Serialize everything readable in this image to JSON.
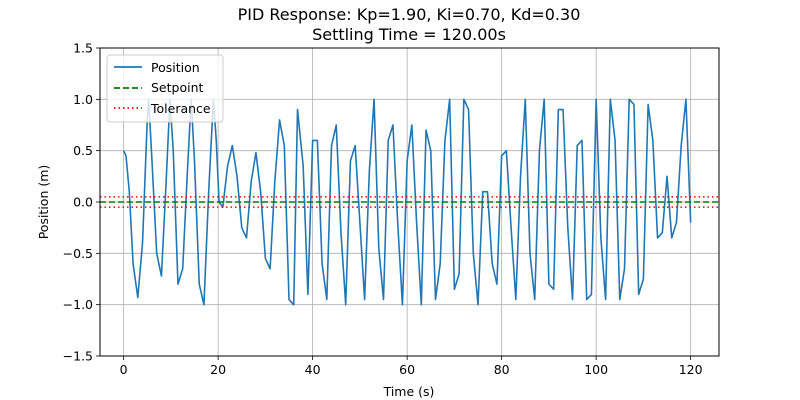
{
  "chart_data": {
    "type": "line",
    "title": "PID Response: Kp=1.90, Ki=0.70, Kd=0.30",
    "subtitle": "Settling Time = 120.00s",
    "xlabel": "Time (s)",
    "ylabel": "Position (m)",
    "xlim": [
      -5,
      126
    ],
    "ylim": [
      -1.5,
      1.5
    ],
    "xticks": [
      0,
      20,
      40,
      60,
      80,
      100,
      120
    ],
    "yticks": [
      -1.5,
      -1.0,
      -0.5,
      0.0,
      0.5,
      1.0,
      1.5
    ],
    "xtick_labels": [
      "0",
      "20",
      "40",
      "60",
      "80",
      "100",
      "120"
    ],
    "ytick_labels": [
      "−1.5",
      "−1.0",
      "−0.5",
      "0.0",
      "0.5",
      "1.0",
      "1.5"
    ],
    "grid": true,
    "legend_position": "top-left",
    "series": [
      {
        "name": "Position",
        "color": "#1f77b4",
        "style": "solid",
        "x": [
          0,
          0.5,
          1.2,
          2.0,
          3.0,
          4.0,
          5.0,
          5.3,
          6.0,
          7.0,
          8.0,
          9.0,
          9.8,
          10.5,
          11.5,
          12.5,
          13.5,
          14.3,
          15.0,
          16.0,
          17.0,
          18.0,
          19.0,
          19.6,
          20.2,
          21.0,
          22.0,
          23.0,
          24.0,
          25.0,
          26.0,
          27.0,
          28.0,
          29.0,
          30.0,
          31.0,
          32.0,
          33.0,
          34.0,
          35.0,
          36.0,
          36.8,
          38.0,
          39.0,
          40.0,
          41.0,
          42.0,
          43.0,
          44.0,
          45.0,
          46.0,
          47.0,
          48.0,
          49.0,
          50.0,
          51.0,
          52.0,
          53.0,
          54.0,
          55.0,
          56.0,
          57.0,
          58.0,
          59.0,
          60.0,
          61.0,
          62.0,
          63.0,
          64.0,
          65.0,
          66.0,
          67.0,
          68.0,
          69.0,
          70.0,
          71.0,
          72.0,
          73.0,
          74.0,
          75.0,
          76.0,
          77.0,
          78.0,
          79.0,
          80.0,
          81.0,
          82.0,
          83.0,
          84.0,
          85.0,
          86.0,
          87.0,
          88.0,
          89.0,
          90.0,
          91.0,
          92.0,
          93.0,
          94.0,
          95.0,
          96.0,
          97.0,
          98.0,
          99.0,
          100.0,
          101.0,
          102.0,
          103.0,
          104.0,
          105.0,
          106.0,
          107.0,
          108.0,
          109.0,
          110.0,
          111.0,
          112.0,
          113.0,
          114.0,
          115.0,
          116.0,
          117.0,
          118.0,
          119.0,
          120.0
        ],
        "y": [
          0.5,
          0.45,
          0.1,
          -0.6,
          -0.93,
          -0.4,
          0.8,
          1.0,
          0.4,
          -0.5,
          -0.72,
          0.2,
          1.0,
          0.5,
          -0.8,
          -0.65,
          0.3,
          1.0,
          0.4,
          -0.8,
          -1.0,
          0.1,
          1.0,
          0.6,
          0.0,
          -0.05,
          0.35,
          0.55,
          0.25,
          -0.25,
          -0.35,
          0.2,
          0.48,
          0.1,
          -0.55,
          -0.65,
          0.2,
          0.8,
          0.55,
          -0.95,
          -1.0,
          0.9,
          0.35,
          -0.9,
          0.6,
          0.6,
          -0.6,
          -0.95,
          0.55,
          0.75,
          -0.3,
          -1.0,
          0.4,
          0.55,
          -0.2,
          -0.95,
          0.3,
          1.0,
          -0.45,
          -0.95,
          0.6,
          0.75,
          -0.2,
          -1.0,
          0.4,
          0.75,
          -0.2,
          -1.0,
          0.7,
          0.5,
          -0.95,
          -0.6,
          0.6,
          1.0,
          -0.85,
          -0.7,
          1.0,
          0.9,
          -0.5,
          -1.0,
          0.1,
          0.1,
          -0.6,
          -0.8,
          0.45,
          0.5,
          -0.25,
          -0.95,
          0.25,
          1.0,
          -0.5,
          -0.95,
          0.5,
          1.0,
          -0.8,
          -0.85,
          0.9,
          0.9,
          -0.25,
          -0.95,
          0.55,
          0.6,
          -0.95,
          -0.9,
          1.0,
          -0.35,
          -0.95,
          1.0,
          0.6,
          -0.95,
          -0.65,
          1.0,
          0.95,
          -0.9,
          -0.75,
          0.95,
          0.6,
          -0.35,
          -0.3,
          0.25,
          -0.35,
          -0.2,
          0.55,
          1.0,
          -0.2
        ]
      },
      {
        "name": "Setpoint",
        "color": "#008000",
        "style": "dashed",
        "y_constant": 0.0
      },
      {
        "name": "Tolerance",
        "color": "#ff0000",
        "style": "dotted",
        "y_constants": [
          0.05,
          -0.05
        ]
      }
    ]
  }
}
